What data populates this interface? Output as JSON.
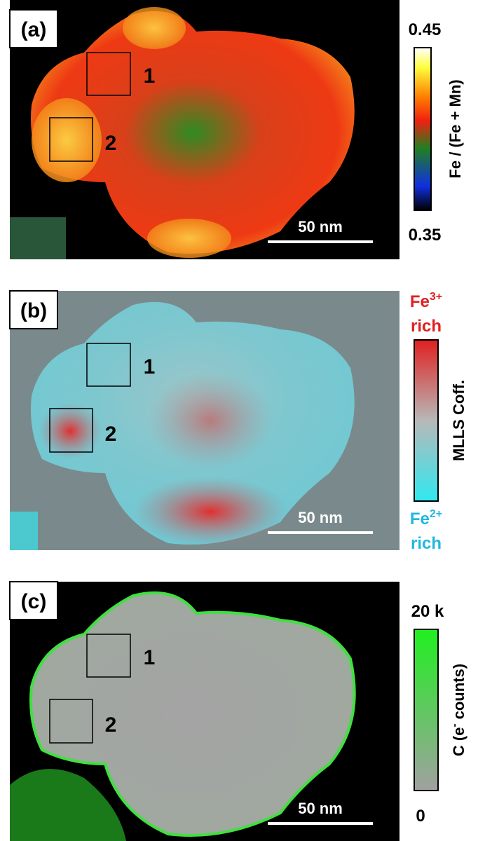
{
  "panels": [
    {
      "label": "(a)",
      "box_labels": [
        "1",
        "2"
      ],
      "scale_bar": "50 nm",
      "colorbar": {
        "top": "0.45",
        "bottom": "0.35",
        "title": "Fe / (Fe + Mn)"
      }
    },
    {
      "label": "(b)",
      "box_labels": [
        "1",
        "2"
      ],
      "scale_bar": "50 nm",
      "colorbar": {
        "top": {
          "base": "Fe",
          "sup": "3+",
          "word": "rich"
        },
        "bottom": {
          "base": "Fe",
          "sup": "2+",
          "word": "rich"
        },
        "title": "MLLS Coff."
      }
    },
    {
      "label": "(c)",
      "box_labels": [
        "1",
        "2"
      ],
      "scale_bar": "50 nm",
      "colorbar": {
        "top": "20 k",
        "bottom": "0",
        "title": {
          "base": "C (e",
          "sup": "-",
          "rest": " counts)"
        }
      }
    }
  ]
}
